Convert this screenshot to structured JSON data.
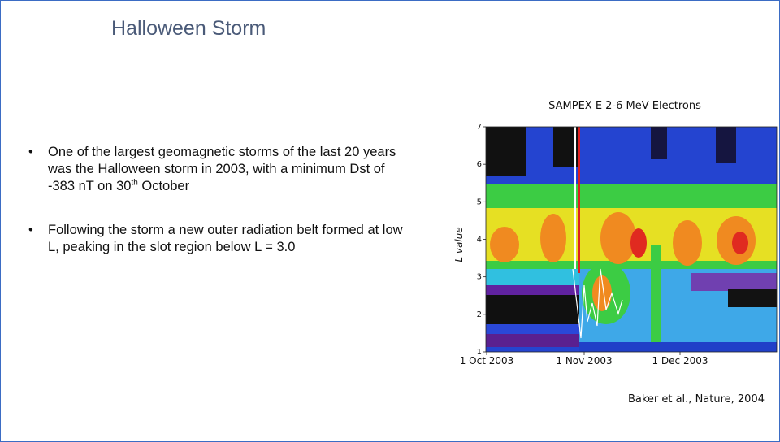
{
  "header": {
    "title": "Halloween Storm"
  },
  "bullets": [
    {
      "parts": [
        "One of the largest geomagnetic storms of the last 20 years was the Halloween storm in 2003, with a minimum Dst of -383 nT on 30",
        "th",
        " October"
      ]
    },
    {
      "parts": [
        "Following the storm a new outer radiation belt formed at low L, peaking in the slot region below L = 3.0"
      ]
    }
  ],
  "figure": {
    "title": "SAMPEX E 2-6 MeV Electrons",
    "y_label": "L value",
    "y_ticks": [
      "1",
      "2",
      "3",
      "4",
      "5",
      "6",
      "7"
    ],
    "x_ticks": [
      "1 Oct 2003",
      "1 Nov 2003",
      "1 Dec 2003"
    ]
  },
  "citation": "Baker et al., Nature, 2004"
}
